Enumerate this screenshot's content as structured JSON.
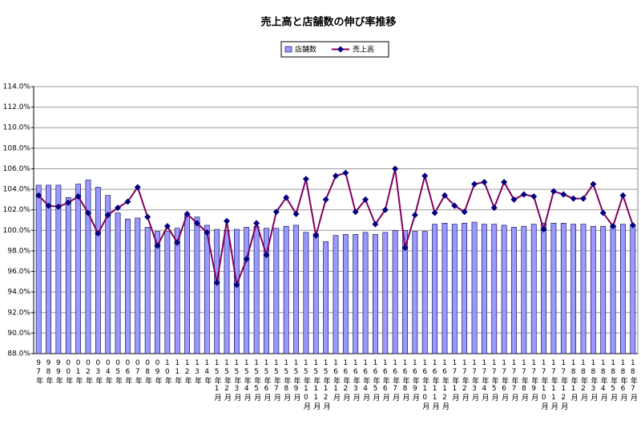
{
  "chart_data": {
    "type": "bar_line",
    "title": "売上高と店舗数の伸び率推移",
    "categories": [
      "97年",
      "98年",
      "99年",
      "00年",
      "01年",
      "02年",
      "03年",
      "04年",
      "05年",
      "06年",
      "07年",
      "08年",
      "09年",
      "10年",
      "11年",
      "12年",
      "13年",
      "14年",
      "15年1月",
      "15年2月",
      "15年3月",
      "15年4月",
      "15年5月",
      "15年6月",
      "15年7月",
      "15年8月",
      "15年9月",
      "15年10月",
      "15年11月",
      "15年12月",
      "16年1月",
      "16年2月",
      "16年3月",
      "16年4月",
      "16年5月",
      "16年6月",
      "16年7月",
      "16年8月",
      "16年9月",
      "16年10月",
      "16年11月",
      "16年12月",
      "17年1月",
      "17年2月",
      "17年3月",
      "17年4月",
      "17年5月",
      "17年6月",
      "17年7月",
      "17年8月",
      "17年9月",
      "17年10月",
      "17年11月",
      "17年12月",
      "18年1月",
      "18年2月",
      "18年3月",
      "18年4月",
      "18年5月",
      "18年6月",
      "18年7月"
    ],
    "series": [
      {
        "name": "店舗数",
        "type": "bar",
        "color": "#9999ff",
        "values": [
          104.4,
          104.4,
          104.4,
          103.2,
          104.5,
          104.9,
          104.2,
          103.4,
          101.7,
          101.1,
          101.2,
          100.3,
          99.9,
          99.9,
          100.2,
          101.5,
          101.3,
          100.5,
          100.1,
          100.0,
          100.1,
          100.3,
          100.4,
          100.2,
          100.2,
          100.4,
          100.5,
          99.8,
          99.7,
          98.9,
          99.5,
          99.6,
          99.6,
          99.8,
          99.6,
          99.8,
          100.0,
          100.0,
          99.9,
          99.9,
          100.6,
          100.7,
          100.6,
          100.7,
          100.8,
          100.6,
          100.6,
          100.5,
          100.3,
          100.4,
          100.6,
          100.7,
          100.7,
          100.7,
          100.6,
          100.6,
          100.4,
          100.4,
          100.5,
          100.6,
          100.5
        ]
      },
      {
        "name": "売上高",
        "type": "line",
        "color": "#800060",
        "marker_color": "#000080",
        "values": [
          103.4,
          102.4,
          102.3,
          102.7,
          103.3,
          101.7,
          99.7,
          101.5,
          102.2,
          102.8,
          104.2,
          101.3,
          98.5,
          100.4,
          98.8,
          101.6,
          100.7,
          99.8,
          94.9,
          100.9,
          94.7,
          97.2,
          100.7,
          97.6,
          101.8,
          103.2,
          101.6,
          105.0,
          99.5,
          103.0,
          105.3,
          105.6,
          101.8,
          103.0,
          100.6,
          102.0,
          106.0,
          98.3,
          101.5,
          105.3,
          101.7,
          103.4,
          102.4,
          101.8,
          104.5,
          104.7,
          102.2,
          104.7,
          103.0,
          103.5,
          103.3,
          100.1,
          103.8,
          103.5,
          103.1,
          103.1,
          104.5,
          101.7,
          100.4,
          103.4,
          100.5
        ]
      }
    ],
    "ylim": [
      88,
      114
    ],
    "yticks": [
      {
        "value": 88,
        "label": "88.0%"
      },
      {
        "value": 90,
        "label": "90.0%"
      },
      {
        "value": 92,
        "label": "92.0%"
      },
      {
        "value": 94,
        "label": "94.0%"
      },
      {
        "value": 96,
        "label": "96.0%"
      },
      {
        "value": 98,
        "label": "98.0%"
      },
      {
        "value": 100,
        "label": "100.0%"
      },
      {
        "value": 102,
        "label": "102.0%"
      },
      {
        "value": 104,
        "label": "104.0%"
      },
      {
        "value": 106,
        "label": "106.0%"
      },
      {
        "value": 108,
        "label": "108.0%"
      },
      {
        "value": 110,
        "label": "110.0%"
      },
      {
        "value": 112,
        "label": "112.0%"
      },
      {
        "value": 114,
        "label": "114.0%"
      }
    ],
    "grid": true,
    "legend": "top"
  }
}
